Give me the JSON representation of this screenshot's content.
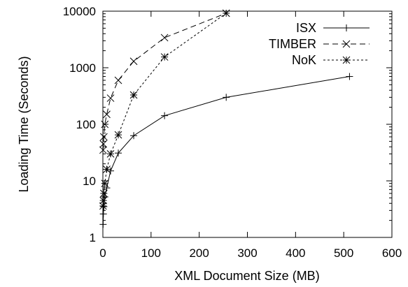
{
  "chart_data": {
    "type": "line",
    "xlabel": "XML Document Size (MB)",
    "ylabel": "Loading Time (Seconds)",
    "xlim": [
      0,
      600
    ],
    "ylim": [
      1,
      10000
    ],
    "yscale": "log",
    "grid": false,
    "legend_position": "top-right",
    "x_ticks": [
      "0",
      "100",
      "200",
      "300",
      "400",
      "500",
      "600"
    ],
    "y_ticks": [
      "1",
      "10",
      "100",
      "1000",
      "10000"
    ],
    "series": [
      {
        "name": "ISX",
        "dash": "solid",
        "marker": "plus",
        "points": [
          [
            0.5,
            1.7
          ],
          [
            1,
            2.6
          ],
          [
            2,
            3.5
          ],
          [
            4,
            5.2
          ],
          [
            8,
            7.5
          ],
          [
            16,
            15
          ],
          [
            32,
            31
          ],
          [
            64,
            63
          ],
          [
            128,
            142
          ],
          [
            256,
            300
          ],
          [
            512,
            700
          ]
        ]
      },
      {
        "name": "TIMBER",
        "dash": "long-dash",
        "marker": "cross",
        "points": [
          [
            0.5,
            35
          ],
          [
            1,
            45
          ],
          [
            2,
            60
          ],
          [
            4,
            100
          ],
          [
            8,
            150
          ],
          [
            16,
            290
          ],
          [
            32,
            600
          ],
          [
            64,
            1300
          ],
          [
            128,
            3400
          ],
          [
            256,
            9200
          ]
        ]
      },
      {
        "name": "NoK",
        "dash": "short-dash",
        "marker": "star",
        "points": [
          [
            0.5,
            3.6
          ],
          [
            1,
            4.5
          ],
          [
            2,
            6
          ],
          [
            4,
            9
          ],
          [
            8,
            16
          ],
          [
            16,
            30
          ],
          [
            32,
            65
          ],
          [
            64,
            330
          ],
          [
            128,
            1550
          ],
          [
            256,
            9200
          ]
        ]
      }
    ]
  }
}
